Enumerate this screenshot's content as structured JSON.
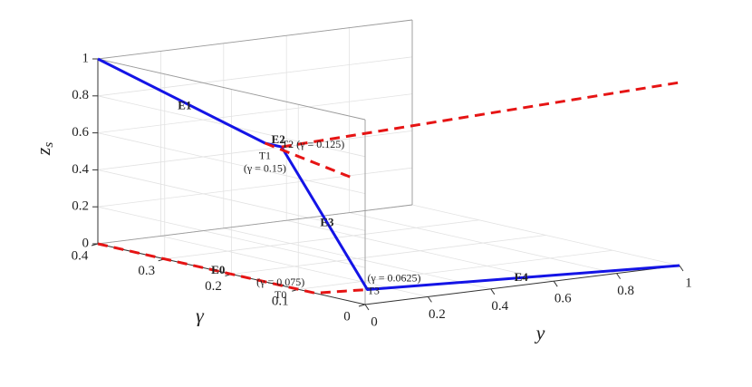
{
  "chart_data": {
    "type": "line",
    "title": "",
    "xlabel": "y",
    "ylabel": "γ",
    "zlabel": "z_s",
    "xlim": [
      0,
      1
    ],
    "ylim": [
      0,
      0.4
    ],
    "zlim": [
      0,
      1
    ],
    "x_ticks": [
      "0",
      "0.2",
      "0.4",
      "0.6",
      "0.8",
      "1"
    ],
    "y_ticks": [
      "0",
      "0.1",
      "0.2",
      "0.3",
      "0.4"
    ],
    "z_ticks": [
      "0",
      "0.2",
      "0.4",
      "0.6",
      "0.8",
      "1"
    ],
    "grid": true,
    "series": [
      {
        "style": "solid",
        "color": "#1414e6",
        "points": [
          {
            "x": 0,
            "y": 0.4,
            "z": 1
          },
          {
            "x": 0,
            "y": 0.15,
            "z": 0.75
          },
          {
            "x": 0,
            "y": 0.125,
            "z": 0.75
          },
          {
            "x": 0.14,
            "y": 0.0625,
            "z": 0
          },
          {
            "x": 1,
            "y": 0,
            "z": 0
          }
        ]
      },
      {
        "style": "dashed",
        "color": "#e61414",
        "points": [
          {
            "x": 0,
            "y": 0.4,
            "z": 0
          },
          {
            "x": 0,
            "y": 0.075,
            "z": 0
          },
          {
            "x": 0.14,
            "y": 0.0625,
            "z": 0
          }
        ]
      },
      {
        "style": "dashed",
        "color": "#e61414",
        "points": [
          {
            "x": 0,
            "y": 0.15,
            "z": 0.75
          },
          {
            "x": 0.18,
            "y": 0.1,
            "z": 0.56
          }
        ]
      },
      {
        "style": "dashed",
        "color": "#e61414",
        "points": [
          {
            "x": 0,
            "y": 0.125,
            "z": 0.75
          },
          {
            "x": 1,
            "y": 0,
            "z": 0.99
          }
        ]
      }
    ],
    "edge_labels": [
      {
        "text": "E0",
        "x": 0,
        "y": 0.22,
        "z": 0
      },
      {
        "text": "E1",
        "x": 0,
        "y": 0.27,
        "z": 0.85
      },
      {
        "text": "E2",
        "x": 0,
        "y": 0.13,
        "z": 0.78
      },
      {
        "text": "E3",
        "x": 0.07,
        "y": 0.09,
        "z": 0.35
      },
      {
        "text": "E4",
        "x": 0.56,
        "y": 0.03,
        "z": 0
      }
    ],
    "annotations": [
      {
        "lines": [
          "T1",
          "(γ = 0.15)"
        ],
        "x": 0,
        "y": 0.15,
        "z": 0.75
      },
      {
        "lines": [
          "T2 (γ = 0.125)"
        ],
        "x": 0,
        "y": 0.125,
        "z": 0.75
      },
      {
        "lines": [
          "(γ = 0.075)",
          "T0"
        ],
        "x": 0,
        "y": 0.075,
        "z": 0
      },
      {
        "lines": [
          "(γ = 0.0625)",
          "T3"
        ],
        "x": 0.14,
        "y": 0.0625,
        "z": 0
      }
    ]
  }
}
